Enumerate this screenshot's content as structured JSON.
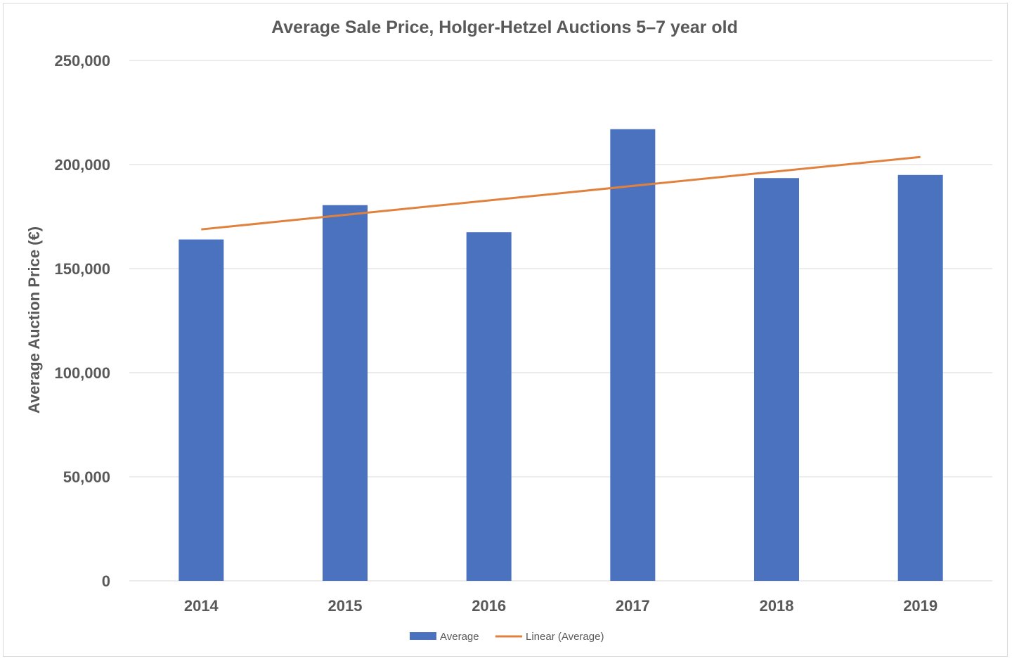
{
  "chart_data": {
    "type": "bar",
    "title": "Average Sale Price, Holger-Hetzel Auctions 5–7 year old",
    "xlabel": "",
    "ylabel": "Average Auction Price (€)",
    "categories": [
      "2014",
      "2015",
      "2016",
      "2017",
      "2018",
      "2019"
    ],
    "series": [
      {
        "name": "Average",
        "values": [
          164000,
          180500,
          167500,
          217000,
          193500,
          195000
        ],
        "color": "#4a72bf"
      }
    ],
    "trendline": {
      "name": "Linear (Average)",
      "type": "linear",
      "of_series": "Average",
      "color": "#e0823d"
    },
    "ylim": [
      0,
      250000
    ],
    "yticks": [
      "0",
      "50,000",
      "100,000",
      "150,000",
      "200,000",
      "250,000"
    ],
    "ytick_values": [
      0,
      50000,
      100000,
      150000,
      200000,
      250000
    ],
    "grid": "horizontal",
    "legend": "bottom"
  }
}
